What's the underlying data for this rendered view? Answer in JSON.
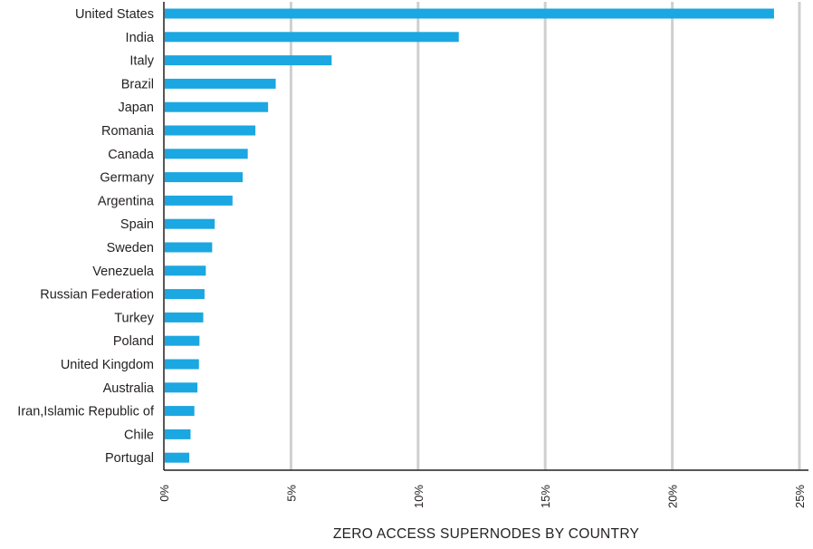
{
  "chart_data": {
    "type": "bar",
    "orientation": "horizontal",
    "categories": [
      "United States",
      "India",
      "Italy",
      "Brazil",
      "Japan",
      "Romania",
      "Canada",
      "Germany",
      "Argentina",
      "Spain",
      "Sweden",
      "Venezuela",
      "Russian Federation",
      "Turkey",
      "Poland",
      "United Kingdom",
      "Australia",
      "Iran,Islamic Republic of",
      "Chile",
      "Portugal"
    ],
    "values": [
      24.0,
      11.6,
      6.6,
      4.4,
      4.1,
      3.6,
      3.3,
      3.1,
      2.7,
      2.0,
      1.9,
      1.65,
      1.6,
      1.55,
      1.4,
      1.38,
      1.32,
      1.2,
      1.05,
      1.0
    ],
    "xlabel": "ZERO ACCESS SUPERNODES BY COUNTRY",
    "xlim": [
      0,
      25
    ],
    "xticks": [
      0,
      5,
      10,
      15,
      20,
      25
    ],
    "xtick_labels": [
      "0%",
      "5%",
      "10%",
      "15%",
      "20%",
      "25%"
    ],
    "grid": "vertical",
    "bar_color": "#1ba7e1",
    "grid_color": "#cfcfcf",
    "axis_color": "#231f20"
  }
}
